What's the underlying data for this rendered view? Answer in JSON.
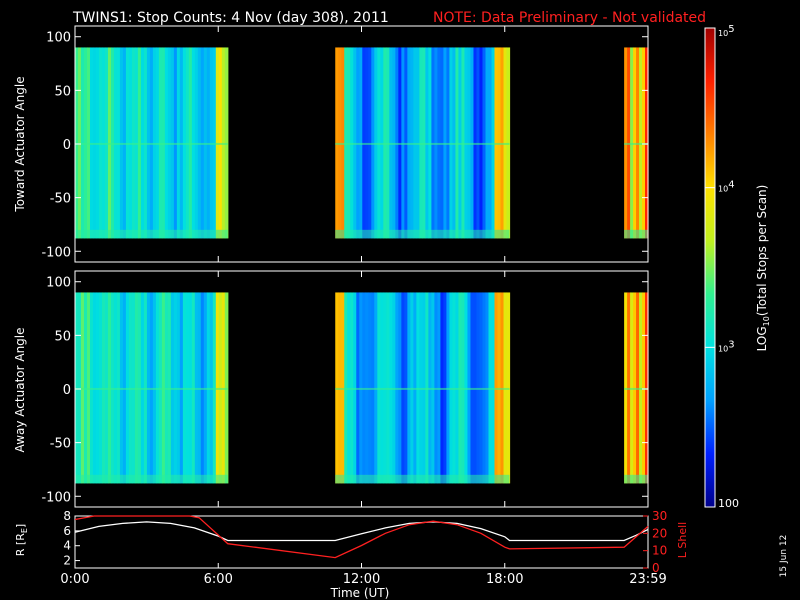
{
  "title": {
    "main": "TWINS1: Stop Counts:  4 Nov (day 308), 2011",
    "note": "NOTE: Data Preliminary - Not validated",
    "note_color": "#ff2020"
  },
  "stamp": "15 Jun 12",
  "chart_data": [
    {
      "type": "heatmap",
      "panel": "toward",
      "ylabel": "Toward Actuator Angle",
      "ylim": [
        -110,
        110
      ],
      "yticks": [
        "100",
        "50",
        "0",
        "-50",
        "-100"
      ],
      "ytick_values": [
        100,
        50,
        0,
        -50,
        -100
      ],
      "angle_range": [
        -88,
        90
      ],
      "x_range_hours": [
        0,
        24
      ],
      "data_intervals_hours": [
        [
          0.0,
          6.4
        ],
        [
          10.9,
          18.2
        ],
        [
          23.0,
          24.0
        ]
      ],
      "color_scale": "log",
      "zlim": [
        100,
        100000
      ]
    },
    {
      "type": "heatmap",
      "panel": "away",
      "ylabel": "Away Actuator Angle",
      "ylim": [
        -110,
        110
      ],
      "yticks": [
        "100",
        "50",
        "0",
        "-50",
        "-100"
      ],
      "ytick_values": [
        100,
        50,
        0,
        -50,
        -100
      ],
      "angle_range": [
        -88,
        90
      ],
      "x_range_hours": [
        0,
        24
      ],
      "data_intervals_hours": [
        [
          0.0,
          6.4
        ],
        [
          10.9,
          18.2
        ],
        [
          23.0,
          24.0
        ]
      ],
      "color_scale": "log",
      "zlim": [
        100,
        100000
      ]
    },
    {
      "type": "line",
      "panel": "orbit",
      "xlabel": "Time (UT)",
      "xticks": [
        "0:00",
        "6:00",
        "12:00",
        "18:00",
        "23:59"
      ],
      "xtick_hours": [
        0,
        6,
        12,
        18,
        24
      ],
      "left_axis": {
        "label": "R [RE]",
        "label_main": "R [R",
        "label_sub": "E",
        "label_end": "]",
        "ylim": [
          1,
          8
        ],
        "yticks": [
          "8",
          "6",
          "4",
          "2"
        ],
        "ytick_values": [
          8,
          6,
          4,
          2
        ]
      },
      "right_axis": {
        "label": "L Shell",
        "ylim": [
          0,
          30
        ],
        "yticks": [
          "30",
          "20",
          "10",
          "0"
        ],
        "ytick_values": [
          30,
          20,
          10,
          0
        ],
        "color": "#ff2020"
      },
      "series": [
        {
          "axis": "left",
          "color": "#ffffff",
          "x": [
            0,
            1,
            2,
            3,
            4,
            5,
            6,
            6.4,
            10.9,
            12,
            13,
            14,
            15,
            16,
            17,
            18,
            18.2,
            23,
            23.5,
            24
          ],
          "y": [
            5.8,
            6.6,
            7.0,
            7.2,
            7.0,
            6.4,
            5.3,
            4.7,
            4.7,
            5.6,
            6.4,
            7.0,
            7.2,
            7.0,
            6.3,
            5.2,
            4.7,
            4.7,
            5.4,
            6.2
          ]
        },
        {
          "axis": "right",
          "color": "#ff2020",
          "x": [
            0,
            0.8,
            1.2,
            4.8,
            5.2,
            6.4,
            10.9,
            12,
            13,
            14,
            15,
            16,
            17,
            18,
            18.2,
            23,
            23.5,
            24
          ],
          "y": [
            28,
            32,
            32,
            32,
            29,
            14,
            6,
            13,
            20,
            25,
            27,
            25,
            20,
            12,
            11,
            12,
            18,
            24
          ]
        }
      ]
    }
  ],
  "colorbar": {
    "label_pre": "LOG",
    "label_sub": "10",
    "label_post": "(Total Stops per Scan)",
    "range": [
      100,
      100000
    ],
    "ticks": [
      {
        "value": 100000,
        "base": "10",
        "exp": "5"
      },
      {
        "value": 10000,
        "base": "10",
        "exp": "4"
      },
      {
        "value": 1000,
        "base": "10",
        "exp": "3"
      },
      {
        "value": 100,
        "text": "100"
      }
    ],
    "stops": [
      "#00008a",
      "#0020ff",
      "#00a0ff",
      "#00e0e0",
      "#30f090",
      "#c0f020",
      "#ffe000",
      "#ff8000",
      "#ff2000",
      "#a00000"
    ]
  }
}
